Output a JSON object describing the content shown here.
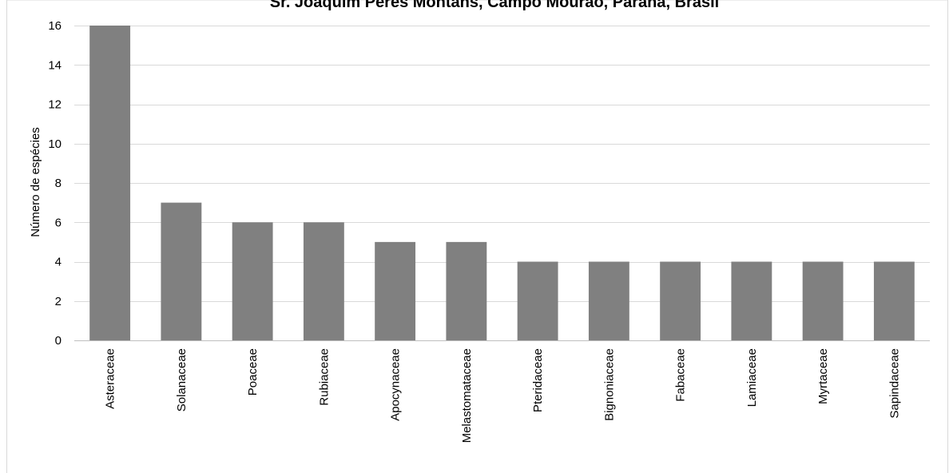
{
  "colors": {
    "bar": "#808080",
    "gridline": "#d9d9d9",
    "axis_line": "#bfbfbf",
    "frame": "#d9d9d9"
  },
  "chart_data": {
    "type": "bar",
    "title": "Sr. Joaquim Peres Montans, Campo Mourão, Paraná, Brasil",
    "xlabel": "",
    "ylabel": "Número de espécies",
    "ylim": [
      0,
      16
    ],
    "yticks": [
      0,
      2,
      4,
      6,
      8,
      10,
      12,
      14,
      16
    ],
    "ytick_labels": [
      "0",
      "2",
      "4",
      "6",
      "8",
      "10",
      "12",
      "14",
      "16"
    ],
    "grid": true,
    "legend": "none",
    "categories": [
      "Asteraceae",
      "Solanaceae",
      "Poaceae",
      "Rubiaceae",
      "Apocynaceae",
      "Melastomataceae",
      "Pteridaceae",
      "Bignoniaceae",
      "Fabaceae",
      "Lamiaceae",
      "Myrtaceae",
      "Sapindaceae"
    ],
    "values": [
      16,
      7,
      6,
      6,
      5,
      5,
      4,
      4,
      4,
      4,
      4,
      4
    ]
  }
}
